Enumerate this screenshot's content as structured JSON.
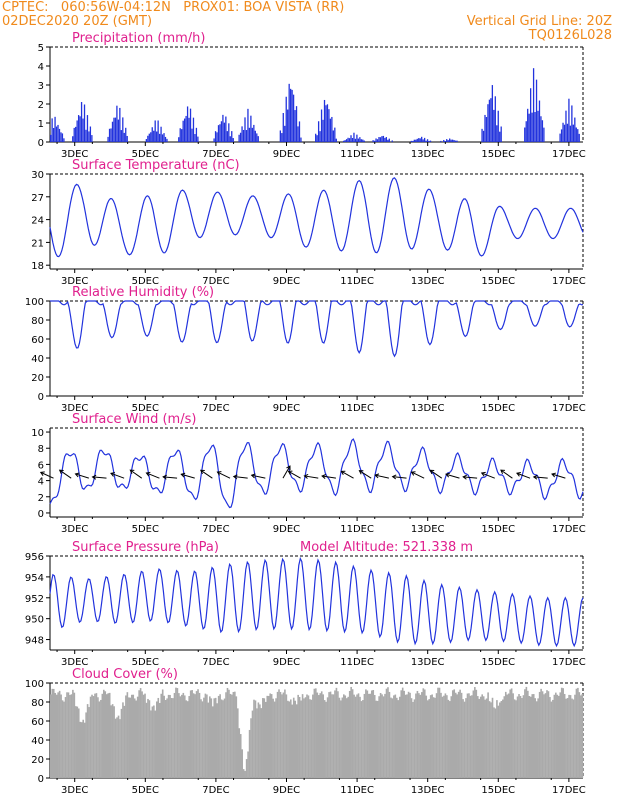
{
  "header": {
    "line1_left": "CPTEC:   060:56W-04:12N   PROX01: BOA VISTA (RR)",
    "line2_left": "02DEC2020 20Z (GMT)",
    "line2_right": "Vertical Grid Line: 20Z",
    "line3_right": "TQ0126L028"
  },
  "colors": {
    "header": "#f08a1c",
    "title": "#e0208e",
    "series": "#2233dd",
    "cloud": "#aaaaaa"
  },
  "chart_data": [
    {
      "type": "bar",
      "title": "Precipitation (mm/h)",
      "ylim": [
        0,
        5
      ],
      "yticks": [
        0,
        1,
        2,
        3,
        4,
        5
      ],
      "xticks": [
        "3DEC",
        "5DEC",
        "7DEC",
        "9DEC",
        "11DEC",
        "13DEC",
        "15DEC",
        "17DEC"
      ],
      "x_range_days": [
        0,
        15.1
      ],
      "x_tick_days": [
        0.7,
        2.7,
        4.7,
        6.7,
        8.7,
        10.7,
        12.7,
        14.7
      ],
      "bursts": [
        {
          "day": 0.1,
          "peak": 1.5
        },
        {
          "day": 0.9,
          "peak": 2.4
        },
        {
          "day": 1.9,
          "peak": 2.2
        },
        {
          "day": 3.0,
          "peak": 1.3
        },
        {
          "day": 3.9,
          "peak": 2.2
        },
        {
          "day": 4.9,
          "peak": 1.7
        },
        {
          "day": 5.6,
          "peak": 1.8
        },
        {
          "day": 6.8,
          "peak": 3.8
        },
        {
          "day": 7.8,
          "peak": 2.7
        },
        {
          "day": 8.6,
          "peak": 0.5
        },
        {
          "day": 9.4,
          "peak": 0.4
        },
        {
          "day": 10.5,
          "peak": 0.3
        },
        {
          "day": 11.3,
          "peak": 0.2
        },
        {
          "day": 12.5,
          "peak": 3.4
        },
        {
          "day": 13.7,
          "peak": 4.1
        },
        {
          "day": 14.7,
          "peak": 2.4
        }
      ]
    },
    {
      "type": "line",
      "title": "Surface Temperature (nC)",
      "ylim": [
        17.5,
        30
      ],
      "yticks": [
        18,
        21,
        24,
        27,
        30
      ],
      "xticks": [
        "3DEC",
        "5DEC",
        "7DEC",
        "9DEC",
        "11DEC",
        "13DEC",
        "15DEC",
        "17DEC"
      ],
      "x_range_days": [
        0,
        15.1
      ],
      "x_tick_days": [
        0.7,
        2.7,
        4.7,
        6.7,
        8.7,
        10.7,
        12.7,
        14.7
      ],
      "daily_max": [
        27.5,
        29.0,
        26.0,
        27.5,
        28.0,
        27.5,
        27.0,
        27.5,
        28.0,
        29.5,
        29.5,
        27.5,
        26.5,
        25.5,
        25.5
      ],
      "daily_min": [
        18.5,
        21.0,
        19.5,
        19.0,
        21.5,
        22.0,
        22.0,
        20.5,
        20.0,
        19.5,
        20.0,
        20.5,
        18.5,
        21.5,
        21.5
      ]
    },
    {
      "type": "line",
      "title": "Relative Humidity (%)",
      "ylim": [
        0,
        100
      ],
      "yticks": [
        0,
        20,
        40,
        60,
        80,
        100
      ],
      "xticks": [
        "3DEC",
        "5DEC",
        "7DEC",
        "9DEC",
        "11DEC",
        "13DEC",
        "15DEC",
        "17DEC"
      ],
      "x_range_days": [
        0,
        15.1
      ],
      "x_tick_days": [
        0.7,
        2.7,
        4.7,
        6.7,
        8.7,
        10.7,
        12.7,
        14.7
      ],
      "daily_min": [
        58,
        46,
        62,
        58,
        52,
        56,
        60,
        58,
        60,
        46,
        44,
        58,
        62,
        68,
        70
      ]
    },
    {
      "type": "line",
      "title": "Surface Wind (m/s)",
      "ylim": [
        -0.5,
        10.5
      ],
      "yticks": [
        0,
        2,
        4,
        6,
        8,
        10
      ],
      "xticks": [
        "3DEC",
        "5DEC",
        "7DEC",
        "9DEC",
        "11DEC",
        "13DEC",
        "15DEC",
        "17DEC"
      ],
      "x_range_days": [
        0,
        15.1
      ],
      "x_tick_days": [
        0.7,
        2.7,
        4.7,
        6.7,
        8.7,
        10.7,
        12.7,
        14.7
      ],
      "daily_peak": [
        6.2,
        8.8,
        7.0,
        7.2,
        8.2,
        8.5,
        8.6,
        8.0,
        8.4,
        8.8,
        8.0,
        7.2,
        6.5,
        6.0,
        6.2
      ],
      "daily_min": [
        1.0,
        2.8,
        3.0,
        2.5,
        1.8,
        0.5,
        2.5,
        3.0,
        2.6,
        3.0,
        3.2,
        3.0,
        2.8,
        2.8,
        2.2
      ]
    },
    {
      "type": "line",
      "title": "Surface Pressure (hPa)",
      "annotation": "Model Altitude: 521.338  m",
      "ylim": [
        947,
        956
      ],
      "yticks": [
        948,
        950,
        952,
        954,
        956
      ],
      "xticks": [
        "3DEC",
        "5DEC",
        "7DEC",
        "9DEC",
        "11DEC",
        "13DEC",
        "15DEC",
        "17DEC"
      ],
      "x_range_days": [
        0,
        15.1
      ],
      "x_tick_days": [
        0.7,
        2.7,
        4.7,
        6.7,
        8.7,
        10.7,
        12.7,
        14.7
      ],
      "daily_max": [
        954.3,
        953.8,
        954.2,
        954.8,
        954.5,
        955.2,
        955.6,
        955.8,
        955.5,
        954.7,
        954.2,
        953.3,
        952.8,
        952.4,
        952.0
      ],
      "daily_min": [
        948.8,
        949.8,
        949.5,
        949.8,
        949.2,
        948.6,
        949.0,
        949.0,
        948.8,
        948.6,
        947.6,
        947.6,
        948.0,
        947.8,
        947.4
      ]
    },
    {
      "type": "bar",
      "title": "Cloud Cover (%)",
      "ylim": [
        0,
        100
      ],
      "yticks": [
        0,
        20,
        40,
        60,
        80,
        100
      ],
      "xticks": [
        "3DEC",
        "5DEC",
        "7DEC",
        "9DEC",
        "11DEC",
        "13DEC",
        "15DEC",
        "17DEC"
      ],
      "x_range_days": [
        0,
        15.1
      ],
      "x_tick_days": [
        0.7,
        2.7,
        4.7,
        6.7,
        8.7,
        10.7,
        12.7,
        14.7
      ],
      "typical": 88,
      "dips": [
        {
          "day": 0.9,
          "value": 55
        },
        {
          "day": 1.9,
          "value": 60
        },
        {
          "day": 2.9,
          "value": 72
        },
        {
          "day": 4.6,
          "value": 80
        },
        {
          "day": 5.5,
          "value": 2
        },
        {
          "day": 5.9,
          "value": 75
        },
        {
          "day": 6.9,
          "value": 80
        },
        {
          "day": 12.6,
          "value": 75
        }
      ]
    }
  ]
}
